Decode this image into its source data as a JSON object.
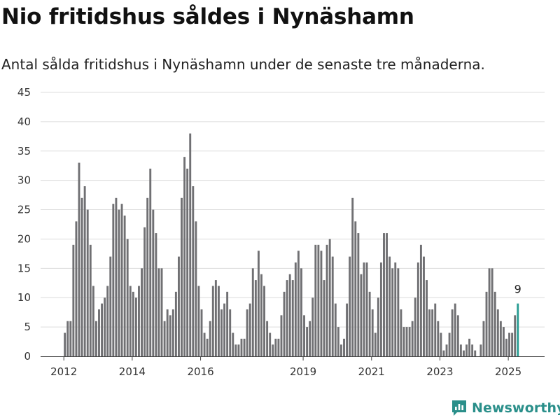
{
  "header": {
    "title": "Nio fritidshus såldes i Nynäshamn",
    "subtitle": "Antal sålda fritidshus i Nynäshamn under de senaste tre månaderna."
  },
  "brand": {
    "name": "Newsworthy",
    "color": "#2a8f8a"
  },
  "chart_data": {
    "type": "bar",
    "ylim": [
      0,
      45
    ],
    "yticks": [
      0,
      5,
      10,
      15,
      20,
      25,
      30,
      35,
      40,
      45
    ],
    "xticks": [
      "2012",
      "2014",
      "2016",
      "2019",
      "2021",
      "2023",
      "2025"
    ],
    "grid": true,
    "bar_color": "#707073",
    "highlight_color": "#2a9d93",
    "highlight_label": "9",
    "values": [
      4,
      6,
      6,
      19,
      23,
      33,
      27,
      29,
      25,
      19,
      12,
      6,
      8,
      9,
      10,
      12,
      17,
      26,
      27,
      25,
      26,
      24,
      20,
      12,
      11,
      10,
      12,
      15,
      22,
      27,
      32,
      25,
      21,
      15,
      15,
      6,
      8,
      7,
      8,
      11,
      17,
      27,
      34,
      32,
      38,
      29,
      23,
      12,
      8,
      4,
      3,
      6,
      12,
      13,
      12,
      8,
      9,
      11,
      8,
      4,
      2,
      2,
      3,
      3,
      8,
      9,
      15,
      13,
      18,
      14,
      12,
      6,
      4,
      2,
      3,
      3,
      7,
      11,
      13,
      14,
      13,
      16,
      18,
      15,
      7,
      5,
      6,
      10,
      19,
      19,
      18,
      13,
      19,
      20,
      17,
      9,
      5,
      2,
      3,
      9,
      17,
      27,
      23,
      21,
      14,
      16,
      16,
      11,
      8,
      4,
      10,
      16,
      21,
      21,
      17,
      15,
      16,
      15,
      8,
      5,
      5,
      5,
      6,
      10,
      16,
      19,
      17,
      13,
      8,
      8,
      9,
      6,
      4,
      1,
      2,
      4,
      8,
      9,
      7,
      2,
      1,
      2,
      3,
      2,
      1,
      0,
      2,
      6,
      11,
      15,
      15,
      11,
      8,
      6,
      5,
      3,
      4,
      4,
      7,
      9
    ]
  }
}
